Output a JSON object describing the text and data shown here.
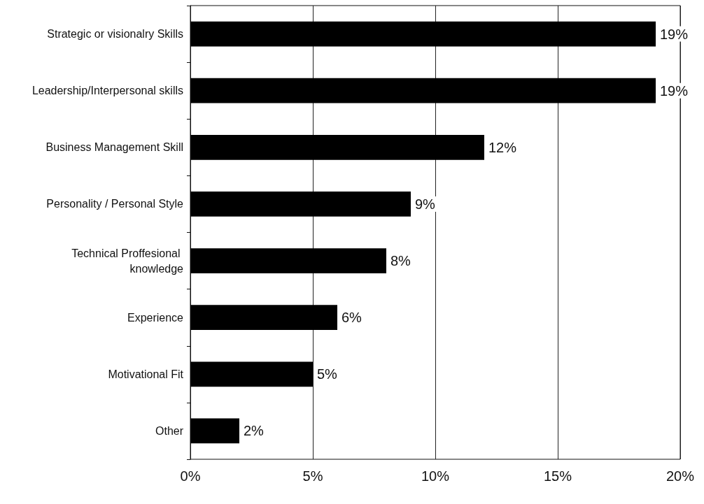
{
  "chart_data": {
    "type": "bar",
    "orientation": "horizontal",
    "categories": [
      "Strategic or visionalry Skills",
      "Leadership/Interpersonal skills",
      "Business Management Skill",
      "Personality / Personal Style",
      "Technical Proffesional knowledge",
      "Experience",
      "Motivational Fit",
      "Other"
    ],
    "values": [
      19,
      19,
      12,
      9,
      8,
      6,
      5,
      2
    ],
    "value_labels": [
      "19%",
      "19%",
      "12%",
      "9%",
      "8%",
      "6%",
      "5%",
      "2%"
    ],
    "color": "#000000",
    "xlim": [
      0,
      20
    ],
    "xticks": [
      {
        "value": 0,
        "label": "0%"
      },
      {
        "value": 5,
        "label": "5%"
      },
      {
        "value": 10,
        "label": "10%"
      },
      {
        "value": 15,
        "label": "15%"
      },
      {
        "value": 20,
        "label": "20%"
      }
    ],
    "grid": "x"
  }
}
